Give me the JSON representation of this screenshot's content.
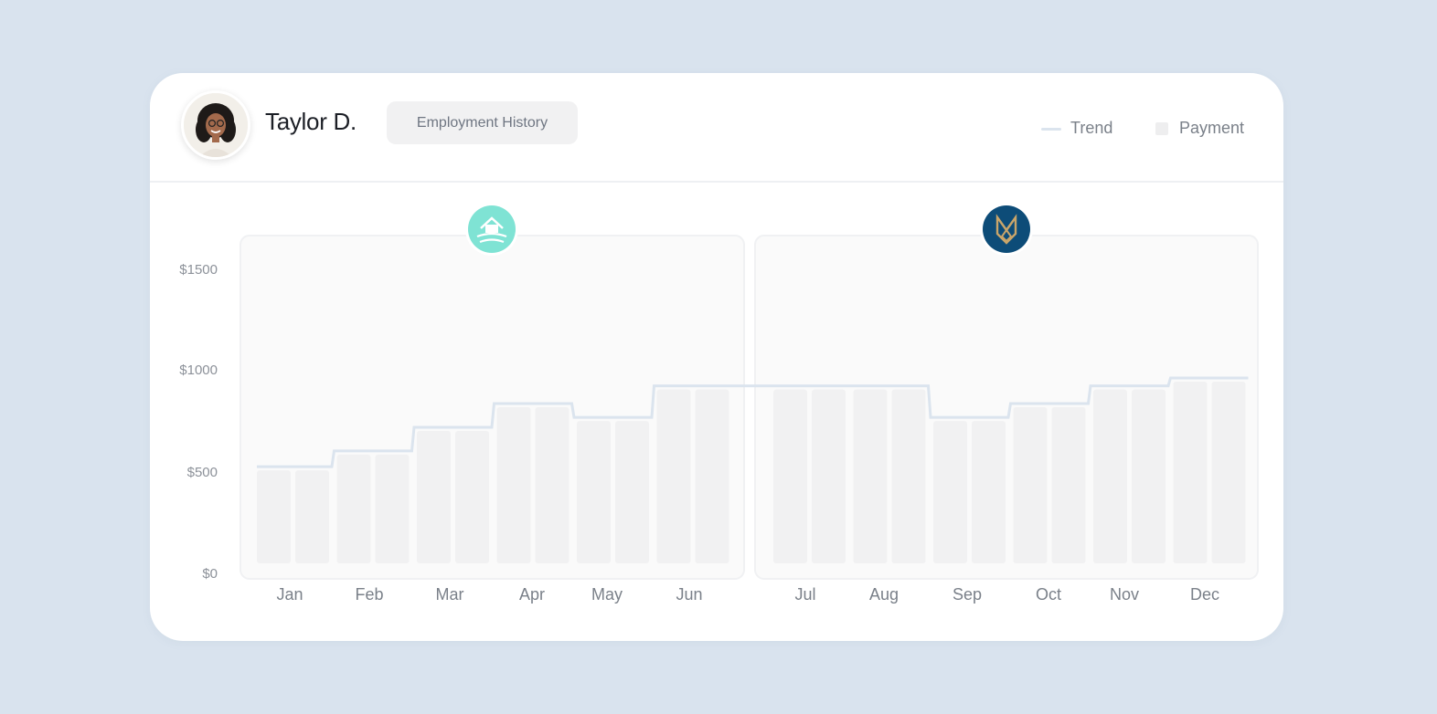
{
  "profile": {
    "name": "Taylor D.",
    "tag_label": "Employment History"
  },
  "legend": {
    "trend_label": "Trend",
    "payment_label": "Payment"
  },
  "colors": {
    "background": "#d9e3ee",
    "panel": "#fafafa",
    "bar": "#f1f1f2",
    "trend": "#dbe4ee",
    "employer_1": "#7fe3d4",
    "employer_2": "#0d4c78"
  },
  "employers": [
    {
      "icon": "house-waves-icon",
      "from_month": "Jan",
      "to_month": "Jun"
    },
    {
      "icon": "fox-emblem-icon",
      "from_month": "Jul",
      "to_month": "Dec"
    }
  ],
  "chart_data": {
    "type": "bar",
    "y_tick_labels": [
      "$0",
      "$500",
      "$1000",
      "$1500"
    ],
    "y_ticks": [
      0,
      500,
      1000,
      1500
    ],
    "ylim": [
      0,
      1680
    ],
    "x_tick_labels": [
      "Jan",
      "Feb",
      "Mar",
      "Apr",
      "May",
      "Jun",
      "Jul",
      "Aug",
      "Sep",
      "Oct",
      "Nov",
      "Dec"
    ],
    "bars_per_month": 2,
    "series": [
      {
        "name": "Payment",
        "type": "bar",
        "values": [
          490,
          490,
          570,
          570,
          690,
          690,
          810,
          810,
          740,
          740,
          900,
          900,
          900,
          900,
          900,
          900,
          740,
          740,
          810,
          810,
          900,
          900,
          940,
          940
        ]
      },
      {
        "name": "Trend",
        "type": "step",
        "values": [
          490,
          490,
          570,
          570,
          690,
          690,
          810,
          810,
          740,
          740,
          900,
          900,
          900,
          900,
          900,
          900,
          740,
          740,
          810,
          810,
          900,
          900,
          940,
          940
        ]
      }
    ],
    "grid": false,
    "legend": "top-right"
  }
}
